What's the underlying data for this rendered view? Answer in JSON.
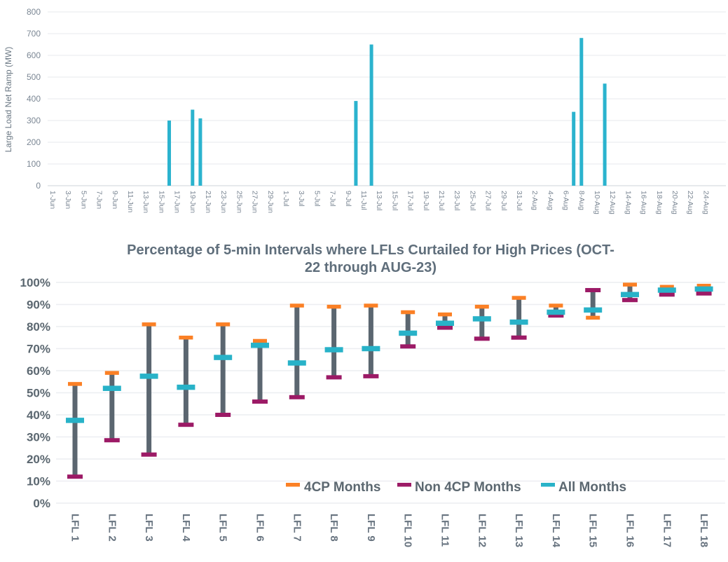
{
  "colors": {
    "bar_teal": "#2BB3CE",
    "marker_orange": "#FB8025",
    "marker_magenta": "#9C1A66",
    "marker_teal": "#28B2C8",
    "stem_gray": "#5B6670",
    "gridline": "#ECEEF1",
    "zero_line": "#D7DCE0",
    "axis_text": "#7B8794",
    "bold_axis_text": "#5B6770",
    "xlabel_text": "#67737F",
    "title_text": "#5F6E7B"
  },
  "top_chart": {
    "type": "bar",
    "ylabel": "Large Load Net Ramp (MW)",
    "ylim": [
      0,
      800
    ],
    "yticks": [
      "0",
      "100",
      "200",
      "300",
      "400",
      "500",
      "600",
      "700",
      "800"
    ],
    "grid": "horizontal",
    "xtick_labels": [
      "1-Jun",
      "3-Jun",
      "5-Jun",
      "7-Jun",
      "9-Jun",
      "11-Jun",
      "13-Jun",
      "15-Jun",
      "17-Jun",
      "19-Jun",
      "21-Jun",
      "23-Jun",
      "25-Jun",
      "27-Jun",
      "29-Jun",
      "1-Jul",
      "3-Jul",
      "5-Jul",
      "7-Jul",
      "9-Jul",
      "11-Jul",
      "13-Jul",
      "15-Jul",
      "17-Jul",
      "19-Jul",
      "21-Jul",
      "23-Jul",
      "25-Jul",
      "27-Jul",
      "29-Jul",
      "31-Jul",
      "2-Aug",
      "4-Aug",
      "6-Aug",
      "8-Aug",
      "10-Aug",
      "12-Aug",
      "14-Aug",
      "16-Aug",
      "18-Aug",
      "20-Aug",
      "22-Aug",
      "24-Aug"
    ],
    "x_range": [
      "1-Jun",
      "24-Aug"
    ],
    "bars": [
      {
        "date": "16-Jun",
        "value": 300
      },
      {
        "date": "19-Jun",
        "value": 350
      },
      {
        "date": "20-Jun",
        "value": 310
      },
      {
        "date": "10-Jul",
        "value": 390
      },
      {
        "date": "12-Jul",
        "value": 650
      },
      {
        "date": "7-Aug",
        "value": 340
      },
      {
        "date": "8-Aug",
        "value": 680
      },
      {
        "date": "11-Aug",
        "value": 470
      }
    ]
  },
  "bottom_chart": {
    "type": "range-marker",
    "title": "Percentage of 5-min Intervals where LFLs Curtailed for High Prices (OCT-22 through AUG-23)",
    "ylim": [
      0,
      100
    ],
    "yticks": [
      "0%",
      "10%",
      "20%",
      "30%",
      "40%",
      "50%",
      "60%",
      "70%",
      "80%",
      "90%",
      "100%"
    ],
    "grid": "horizontal",
    "legend_position": "bottom-inside",
    "categories": [
      "LFL 1",
      "LFL 2",
      "LFL 3",
      "LFL 4",
      "LFL 5",
      "LFL 6",
      "LFL 7",
      "LFL 8",
      "LFL 9",
      "LFL 10",
      "LFL 11",
      "LFL 12",
      "LFL 13",
      "LFL 14",
      "LFL 15",
      "LFL 16",
      "LFL 17",
      "LFL 18"
    ],
    "series": [
      {
        "name": "4CP Months",
        "color_key": "marker_orange",
        "values": [
          54,
          59,
          81,
          75,
          81,
          73.5,
          89.5,
          89,
          89.5,
          86.5,
          85.5,
          89,
          93,
          89.5,
          84,
          99,
          98,
          98.5
        ]
      },
      {
        "name": "Non 4CP Months",
        "color_key": "marker_magenta",
        "values": [
          12,
          28.5,
          22,
          35.5,
          40,
          46,
          48,
          57,
          57.5,
          71,
          79.5,
          74.5,
          75,
          85,
          96.5,
          92,
          94.5,
          95
        ]
      },
      {
        "name": "All Months",
        "color_key": "marker_teal",
        "values": [
          37.5,
          52,
          57.5,
          52.5,
          66,
          71.5,
          63.5,
          69.5,
          70,
          77,
          81.5,
          83.5,
          82,
          86.5,
          87.5,
          94.5,
          96.5,
          97
        ]
      }
    ],
    "legend": [
      "4CP Months",
      "Non 4CP Months",
      "All Months"
    ]
  }
}
